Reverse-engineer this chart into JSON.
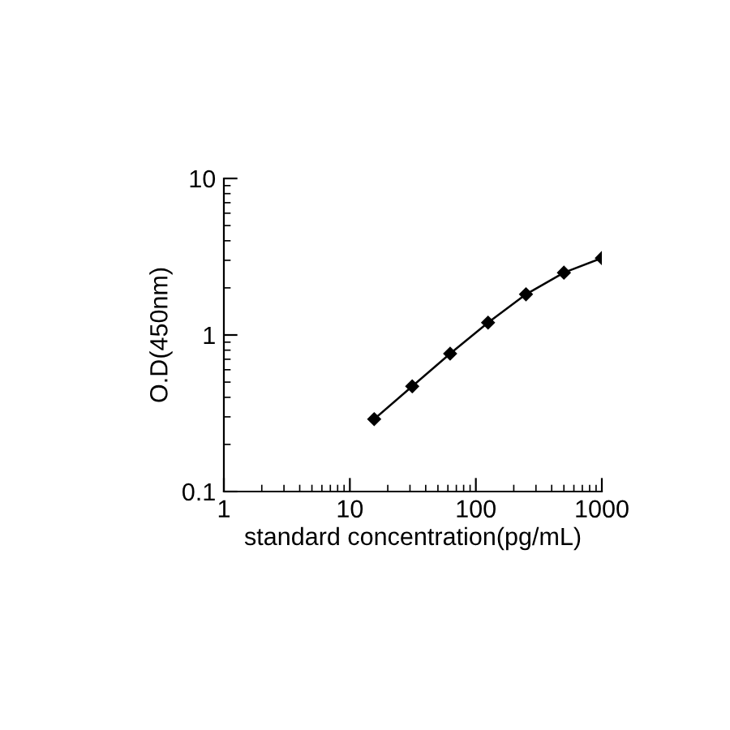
{
  "chart_data": {
    "type": "line",
    "xlabel": "standard concentration(pg/mL)",
    "ylabel": "O.D(450nm)",
    "x": [
      15.6,
      31.25,
      62.5,
      125,
      250,
      500,
      1000
    ],
    "series": [
      {
        "color": "#000000",
        "values": [
          0.29,
          0.47,
          0.76,
          1.2,
          1.82,
          2.5,
          3.1
        ]
      }
    ],
    "log": "xy",
    "xlim": [
      1,
      1000
    ],
    "ylim": [
      0.1,
      10
    ],
    "xticks": [
      1,
      10,
      100,
      1000
    ],
    "yticks": [
      {
        "value": 0.1,
        "label": "0.1"
      },
      1,
      10
    ],
    "marker": "diamond",
    "line_style": "solid",
    "grid": false,
    "legend": false
  }
}
